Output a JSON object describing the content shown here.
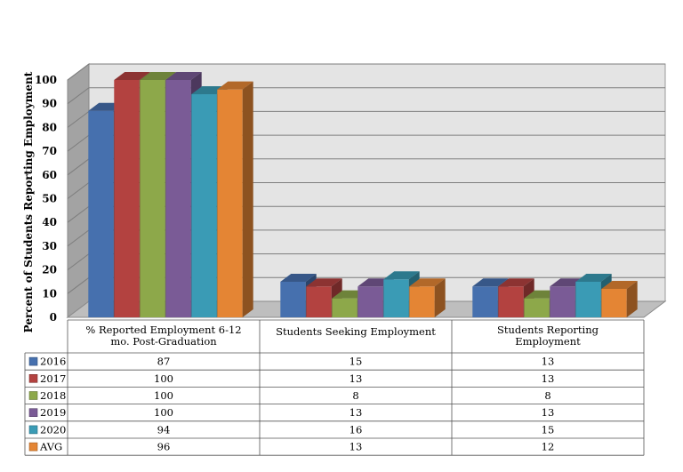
{
  "chart_data": {
    "type": "bar",
    "ylabel": "Percent of Students Reporting Employment",
    "ylim": [
      0,
      100
    ],
    "yticks": [
      0,
      10,
      20,
      30,
      40,
      50,
      60,
      70,
      80,
      90,
      100
    ],
    "grid": true,
    "categories": [
      [
        "% Reported Employment 6-12",
        "mo. Post-Graduation"
      ],
      [
        "Students Seeking Employment"
      ],
      [
        "Students Reporting",
        "Employment"
      ]
    ],
    "series": [
      {
        "name": "2016",
        "color": "#4670AE",
        "values": [
          87,
          15,
          13
        ],
        "table": [
          "87",
          "15",
          "13"
        ]
      },
      {
        "name": "2017",
        "color": "#B34240",
        "values": [
          100,
          13,
          13
        ],
        "table": [
          "100",
          "13",
          "13"
        ]
      },
      {
        "name": "2018",
        "color": "#8DA84A",
        "values": [
          100,
          8,
          8
        ],
        "table": [
          "100",
          "8",
          "8"
        ]
      },
      {
        "name": "2019",
        "color": "#7A5B96",
        "values": [
          100,
          13,
          13
        ],
        "table": [
          "100",
          "13",
          "13"
        ]
      },
      {
        "name": "2020",
        "color": "#3A9BB5",
        "values": [
          94,
          16,
          15
        ],
        "table": [
          "94",
          "16",
          "15"
        ]
      },
      {
        "name": "AVG",
        "color": "#E48534",
        "values": [
          96,
          13,
          12
        ],
        "table": [
          "96",
          "13",
          "12"
        ]
      }
    ]
  }
}
